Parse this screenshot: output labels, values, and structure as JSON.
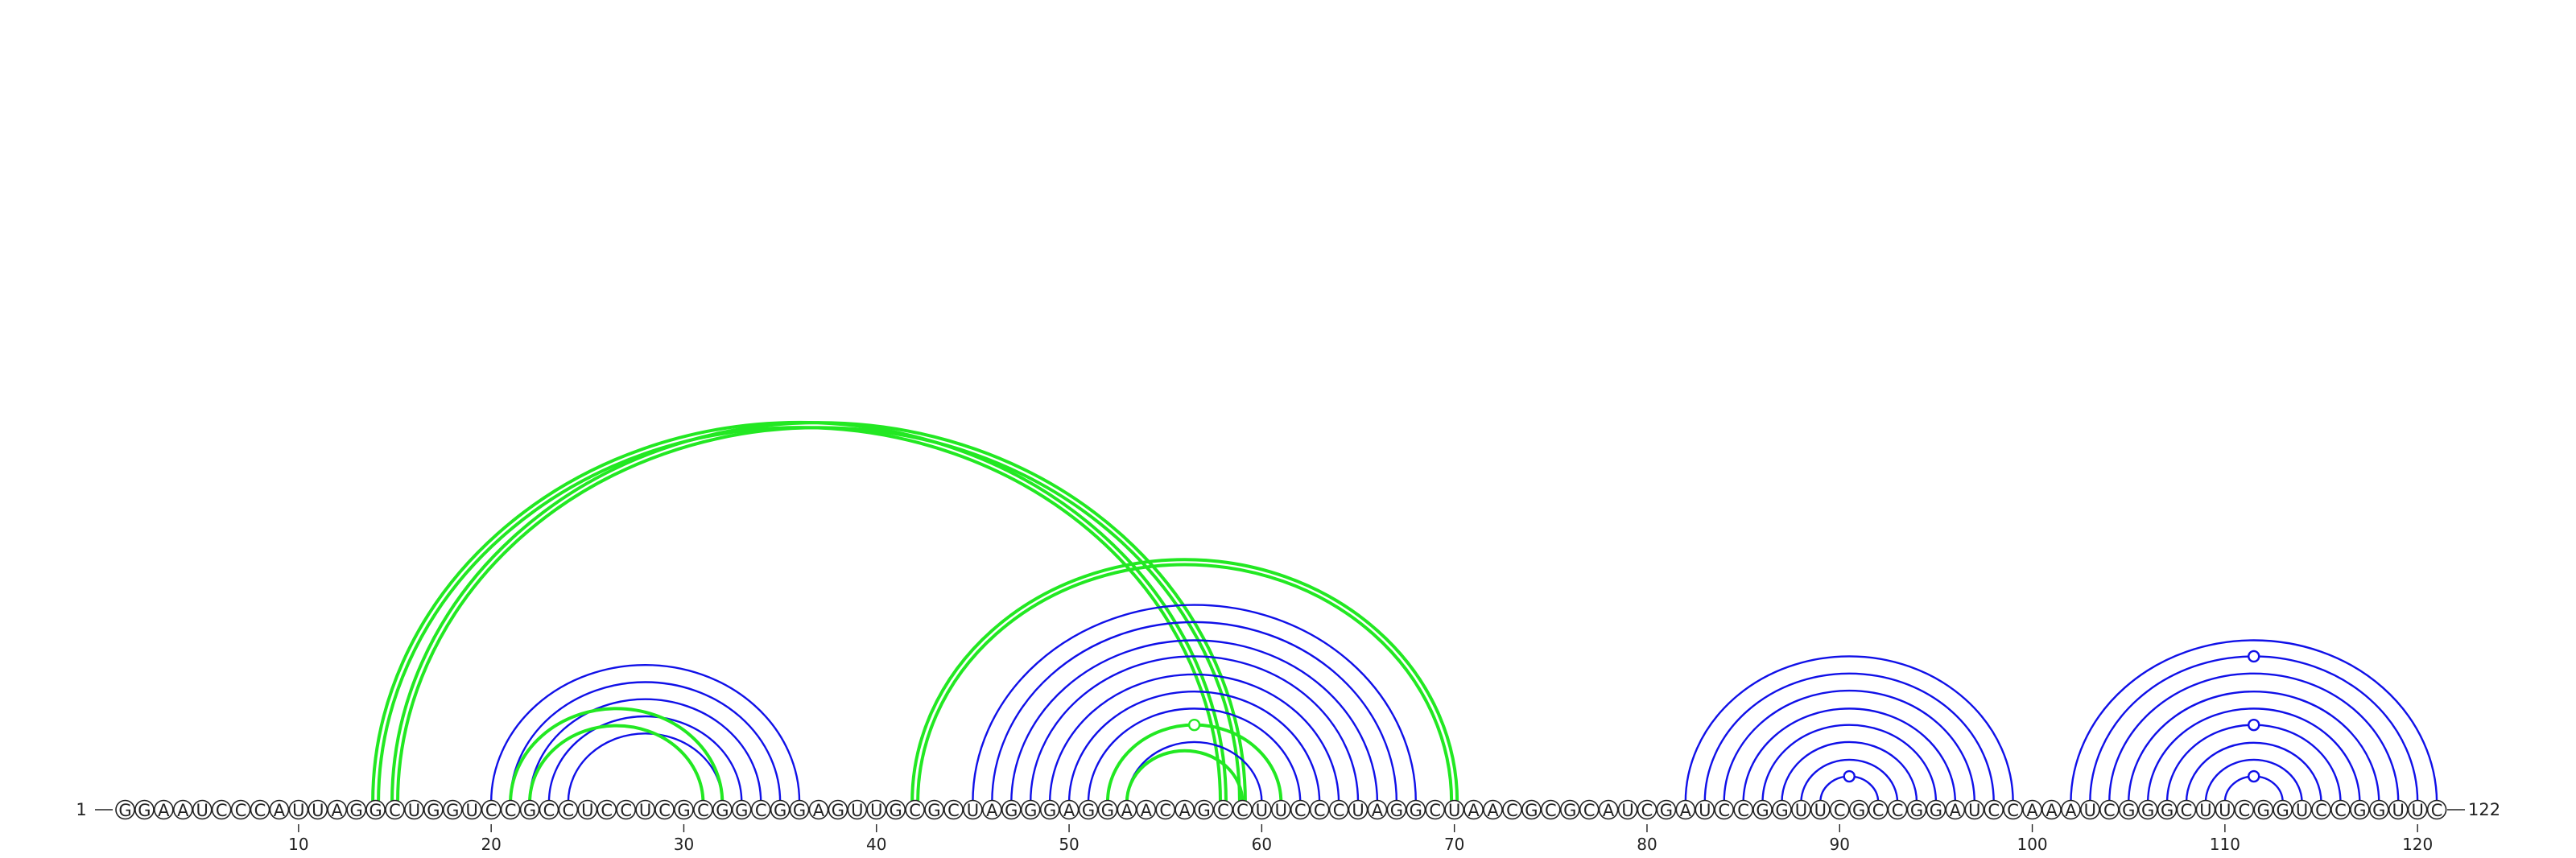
{
  "diagram": {
    "sequence": "GGAAUCCCAUUAGGCUGGUCCGCCUCCUCGCGGCGGAGUUGCGCUAGGGAGGAACAGCCUUCCCUAGGCUAACGCGCAUCGAUCCGGUUCGCCGGAUCCAAAUCGGGCUUCGGUCCGGUUC",
    "start_label": "1",
    "end_label": "122",
    "ticks": [
      "10",
      "20",
      "30",
      "40",
      "50",
      "60",
      "70",
      "80",
      "90",
      "100",
      "110",
      "120"
    ],
    "colors": {
      "blue": "#1010e8",
      "green": "#22e822"
    },
    "arcs": [
      {
        "i": 20,
        "j": 36,
        "color": "blue"
      },
      {
        "i": 21,
        "j": 35,
        "color": "blue"
      },
      {
        "i": 22,
        "j": 34,
        "color": "blue"
      },
      {
        "i": 23,
        "j": 33,
        "color": "blue"
      },
      {
        "i": 24,
        "j": 32,
        "color": "blue"
      },
      {
        "i": 21,
        "j": 32,
        "color": "green"
      },
      {
        "i": 22,
        "j": 31,
        "color": "green"
      },
      {
        "i": 14,
        "j": 58,
        "color": "green",
        "double": true
      },
      {
        "i": 15,
        "j": 59,
        "color": "green",
        "double": true
      },
      {
        "i": 42,
        "j": 70,
        "color": "green",
        "double": true
      },
      {
        "i": 45,
        "j": 68,
        "color": "blue"
      },
      {
        "i": 46,
        "j": 67,
        "color": "blue"
      },
      {
        "i": 47,
        "j": 66,
        "color": "blue"
      },
      {
        "i": 48,
        "j": 65,
        "color": "blue"
      },
      {
        "i": 49,
        "j": 64,
        "color": "blue"
      },
      {
        "i": 50,
        "j": 63,
        "color": "blue"
      },
      {
        "i": 51,
        "j": 62,
        "color": "blue"
      },
      {
        "i": 52,
        "j": 61,
        "color": "blue"
      },
      {
        "i": 53,
        "j": 60,
        "color": "blue"
      },
      {
        "i": 52,
        "j": 61,
        "color": "green"
      },
      {
        "i": 53,
        "j": 59,
        "color": "green"
      },
      {
        "i": 82,
        "j": 99,
        "color": "blue"
      },
      {
        "i": 83,
        "j": 98,
        "color": "blue"
      },
      {
        "i": 84,
        "j": 97,
        "color": "blue"
      },
      {
        "i": 85,
        "j": 96,
        "color": "blue"
      },
      {
        "i": 86,
        "j": 95,
        "color": "blue"
      },
      {
        "i": 87,
        "j": 94,
        "color": "blue"
      },
      {
        "i": 88,
        "j": 93,
        "color": "blue"
      },
      {
        "i": 89,
        "j": 92,
        "color": "blue"
      },
      {
        "i": 102,
        "j": 121,
        "color": "blue"
      },
      {
        "i": 103,
        "j": 120,
        "color": "blue"
      },
      {
        "i": 104,
        "j": 119,
        "color": "blue"
      },
      {
        "i": 105,
        "j": 118,
        "color": "blue"
      },
      {
        "i": 106,
        "j": 117,
        "color": "blue"
      },
      {
        "i": 107,
        "j": 116,
        "color": "blue"
      },
      {
        "i": 108,
        "j": 115,
        "color": "blue"
      },
      {
        "i": 109,
        "j": 114,
        "color": "blue"
      },
      {
        "i": 110,
        "j": 113,
        "color": "blue"
      }
    ],
    "loop_markers": [
      {
        "i": 52,
        "j": 61,
        "color": "green"
      },
      {
        "i": 89,
        "j": 92,
        "color": "blue"
      },
      {
        "i": 103,
        "j": 120,
        "color": "blue"
      },
      {
        "i": 107,
        "j": 116,
        "color": "blue"
      },
      {
        "i": 110,
        "j": 113,
        "color": "blue"
      }
    ]
  }
}
